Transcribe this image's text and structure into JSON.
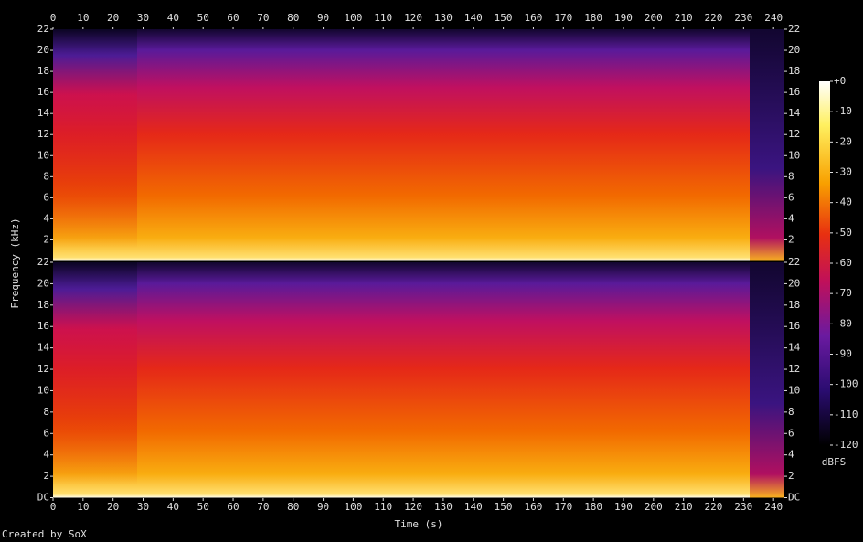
{
  "chart_data": {
    "type": "spectrogram",
    "xlabel": "Time (s)",
    "ylabel": "Frequency (kHz)",
    "footer": "Created by SoX",
    "xlim": [
      0,
      243.6
    ],
    "xticks": [
      0,
      10,
      20,
      30,
      40,
      50,
      60,
      70,
      80,
      90,
      100,
      110,
      120,
      130,
      140,
      150,
      160,
      170,
      180,
      190,
      200,
      210,
      220,
      230,
      240
    ],
    "channels": [
      {
        "ylim": [
          0,
          22
        ],
        "yticks": [
          2,
          4,
          6,
          8,
          10,
          12,
          14,
          16,
          18,
          20,
          22
        ]
      },
      {
        "ylim": [
          0,
          22
        ],
        "yticks": [
          {
            "value": 0,
            "label": "DC"
          },
          2,
          4,
          6,
          8,
          10,
          12,
          14,
          16,
          18,
          20,
          22
        ]
      }
    ],
    "colorbar": {
      "label": "dBFS",
      "lim": [
        -120,
        0
      ],
      "ticks": [
        {
          "value": 0,
          "label": "+0"
        },
        -10,
        -20,
        -30,
        -40,
        -50,
        -60,
        -70,
        -80,
        -90,
        -100,
        -110,
        -120
      ]
    }
  }
}
